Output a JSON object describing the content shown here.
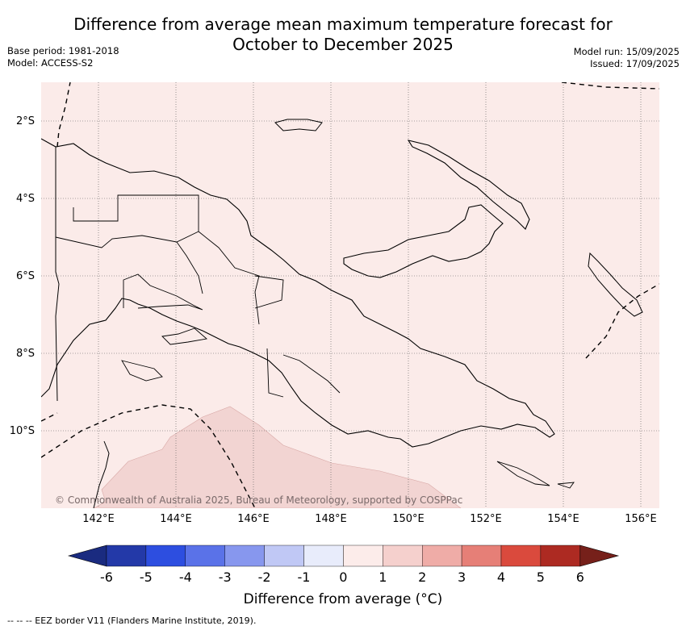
{
  "title_line1": "Difference from average mean maximum temperature forecast for",
  "title_line2": "October to December 2025",
  "base_period": "Base period: 1981-2018",
  "model": "Model: ACCESS-S2",
  "model_run": "Model run: 15/09/2025",
  "issued": "Issued: 17/09/2025",
  "lat_labels": [
    "2°S",
    "4°S",
    "6°S",
    "8°S",
    "10°S"
  ],
  "lon_labels": [
    "142°E",
    "144°E",
    "146°E",
    "148°E",
    "150°E",
    "152°E",
    "154°E",
    "156°E"
  ],
  "copyright": "© Commonwealth of Australia 2025, Bureau of Meteorology, supported by COSPPac",
  "colorbar": {
    "ticks": [
      "-6",
      "-5",
      "-4",
      "-3",
      "-2",
      "-1",
      "0",
      "1",
      "2",
      "3",
      "4",
      "5",
      "6"
    ],
    "colors": [
      "#2339a8",
      "#2d4ee0",
      "#5a72e8",
      "#8797ee",
      "#c0c8f5",
      "#e8ecfb",
      "#fcecea",
      "#f5d0cd",
      "#efaca7",
      "#e67f77",
      "#da4a3d",
      "#ad2a22"
    ],
    "under_color": "#1a2b80",
    "over_color": "#76201a",
    "label": "Difference from average (°C)"
  },
  "footnote": "--  --  -- EEZ border V11 (Flanders Marine Institute, 2019).",
  "map": {
    "background_color": "#fbebe9",
    "warm_patch_color": "#f2d4d2",
    "anomaly_background": "0 to 1 °C",
    "anomaly_patch": "1 to 2 °C"
  }
}
